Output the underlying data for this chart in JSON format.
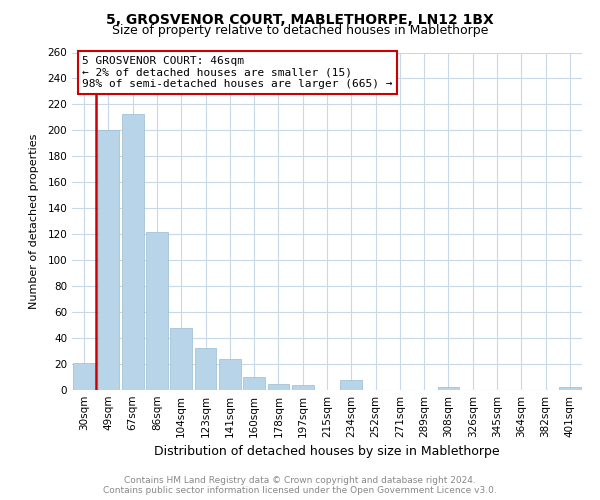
{
  "title": "5, GROSVENOR COURT, MABLETHORPE, LN12 1BX",
  "subtitle": "Size of property relative to detached houses in Mablethorpe",
  "xlabel": "Distribution of detached houses by size in Mablethorpe",
  "ylabel": "Number of detached properties",
  "footer_line1": "Contains HM Land Registry data © Crown copyright and database right 2024.",
  "footer_line2": "Contains public sector information licensed under the Open Government Licence v3.0.",
  "bar_labels": [
    "30sqm",
    "49sqm",
    "67sqm",
    "86sqm",
    "104sqm",
    "123sqm",
    "141sqm",
    "160sqm",
    "178sqm",
    "197sqm",
    "215sqm",
    "234sqm",
    "252sqm",
    "271sqm",
    "289sqm",
    "308sqm",
    "326sqm",
    "345sqm",
    "364sqm",
    "382sqm",
    "401sqm"
  ],
  "bar_values": [
    21,
    200,
    213,
    122,
    48,
    32,
    24,
    10,
    5,
    4,
    0,
    8,
    0,
    0,
    0,
    2,
    0,
    0,
    0,
    0,
    2
  ],
  "bar_color": "#b8d4e8",
  "highlight_color": "#cc0000",
  "annotation_title": "5 GROSVENOR COURT: 46sqm",
  "annotation_line1": "← 2% of detached houses are smaller (15)",
  "annotation_line2": "98% of semi-detached houses are larger (665) →",
  "annotation_box_facecolor": "#ffffff",
  "annotation_box_edgecolor": "#cc0000",
  "ylim": [
    0,
    260
  ],
  "yticks": [
    0,
    20,
    40,
    60,
    80,
    100,
    120,
    140,
    160,
    180,
    200,
    220,
    240,
    260
  ],
  "grid_color": "#c8d8e8",
  "background_color": "#ffffff",
  "title_fontsize": 10,
  "subtitle_fontsize": 9,
  "ylabel_fontsize": 8,
  "xlabel_fontsize": 9,
  "tick_fontsize": 7.5,
  "footer_fontsize": 6.5,
  "footer_color": "#888888"
}
